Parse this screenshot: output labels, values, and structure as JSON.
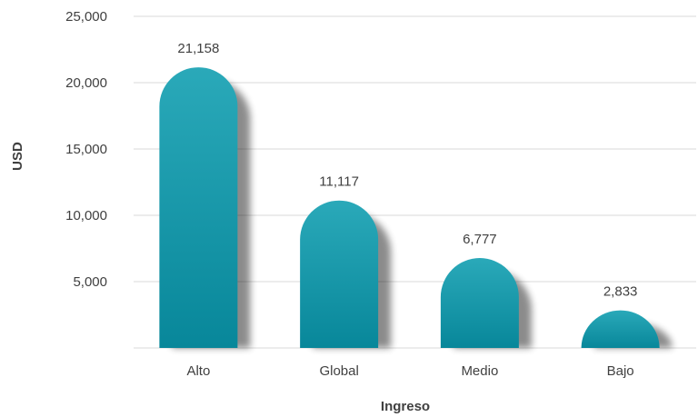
{
  "chart_data": {
    "type": "bar",
    "categories": [
      "Alto",
      "Global",
      "Medio",
      "Bajo"
    ],
    "values": [
      21158,
      11117,
      6777,
      2833
    ],
    "data_labels": [
      "21,158",
      "11,117",
      "6,777",
      "2,833"
    ],
    "xlabel": "Ingreso",
    "ylabel": "USD",
    "ylim": [
      0,
      25000
    ],
    "y_ticks": [
      5000,
      10000,
      15000,
      20000,
      25000
    ],
    "y_tick_labels": [
      "5,000",
      "10,000",
      "15,000",
      "20,000",
      "25,000"
    ],
    "grid": true,
    "legend": "none",
    "colors": {
      "bar_light": "#2aa9b9",
      "bar_dark": "#08879a",
      "grid": "#d9d9d9",
      "text": "#404040"
    }
  }
}
